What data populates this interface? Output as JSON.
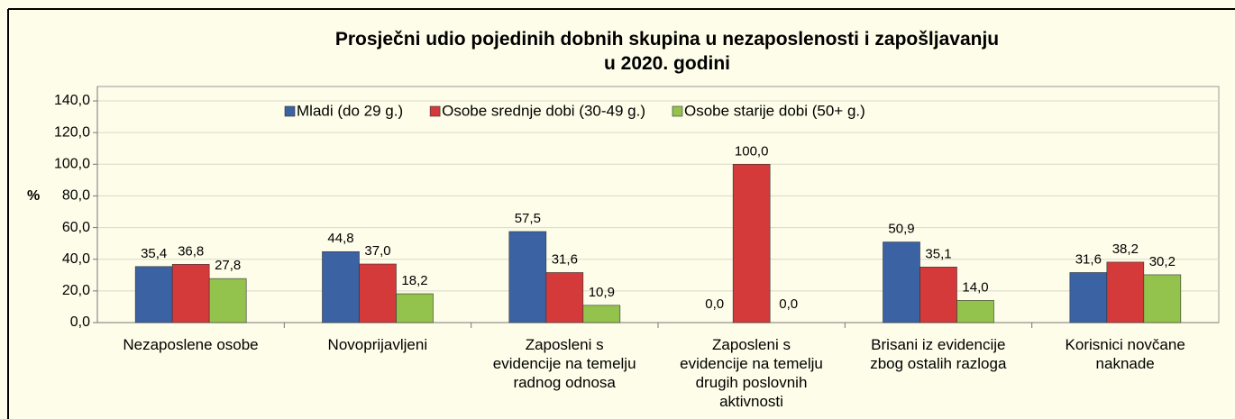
{
  "chart_data": {
    "type": "bar",
    "title": "Prosječni udio pojedinih dobnih skupina u nezaposlenosti i zapošljavanju\nu 2020. godini",
    "y_label": "%",
    "categories": [
      "Nezaposlene osobe",
      "Novoprijavljeni",
      "Zaposleni s\nevidencije na temelju\nradnog odnosa",
      "Zaposleni s\nevidencije na temelju\ndrugih poslovnih\naktivnosti",
      "Brisani iz evidencije\nzbog ostalih razloga",
      "Korisnici novčane\nnaknade"
    ],
    "series": [
      {
        "name": "Mladi (do 29 g.)",
        "color": "#3b62a3",
        "values": [
          35.4,
          44.8,
          57.5,
          0,
          50.9,
          31.6
        ],
        "value_labels": [
          "35,4",
          "44,8",
          "57,5",
          "0,0",
          "50,9",
          "31,6"
        ]
      },
      {
        "name": "Osobe srednje dobi (30-49 g.)",
        "color": "#d43a3a",
        "values": [
          36.8,
          37.0,
          31.6,
          100.0,
          35.1,
          38.2
        ],
        "value_labels": [
          "36,8",
          "37,0",
          "31,6",
          "100,0",
          "35,1",
          "38,2"
        ]
      },
      {
        "name": "Osobe starije dobi (50+ g.)",
        "color": "#93c34c",
        "values": [
          27.8,
          18.2,
          10.9,
          0,
          14.0,
          30.2
        ],
        "value_labels": [
          "27,8",
          "18,2",
          "10,9",
          "0,0",
          "14,0",
          "30,2"
        ]
      }
    ],
    "ylim": [
      0,
      140
    ],
    "yticks": [
      {
        "value": 0,
        "label": "0,0"
      },
      {
        "value": 20,
        "label": "20,0"
      },
      {
        "value": 40,
        "label": "40,0"
      },
      {
        "value": 60,
        "label": "60,0"
      },
      {
        "value": 80,
        "label": "80,0"
      },
      {
        "value": 100,
        "label": "100,0"
      },
      {
        "value": 120,
        "label": "120,0"
      },
      {
        "value": 140,
        "label": "140,0"
      }
    ],
    "grid": true,
    "legend": "top"
  }
}
